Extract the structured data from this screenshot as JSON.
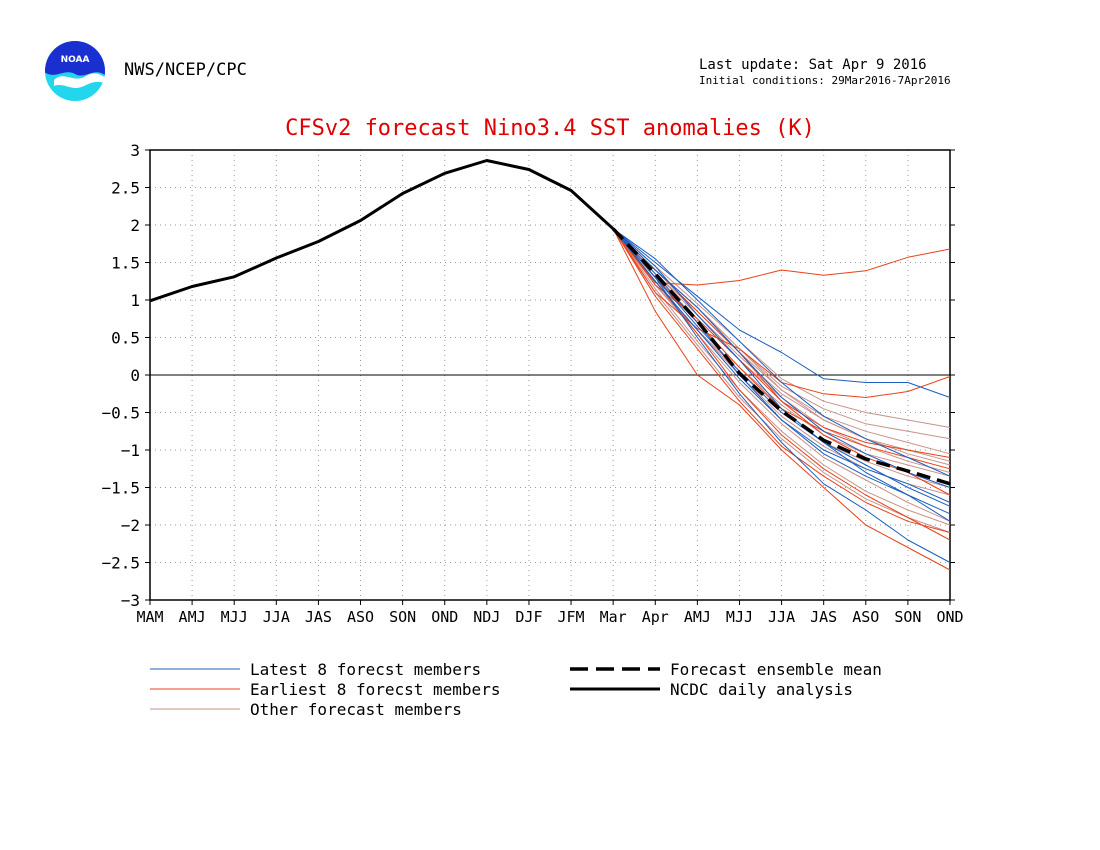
{
  "header": {
    "agency": "NWS/NCEP/CPC",
    "last_update": "Last update: Sat Apr  9 2016",
    "initial_conditions": "Initial conditions: 29Mar2016-7Apr2016"
  },
  "colors": {
    "latest": "#1a5fc0",
    "earliest": "#e8421a",
    "other": "#c9928b",
    "mean": "#000000",
    "analysis": "#000000",
    "title": "#e00000",
    "logo_top": "#1a2fd0",
    "logo_bottom": "#22d6ee"
  },
  "chart_data": {
    "type": "line",
    "title": "CFSv2 forecast Nino3.4 SST anomalies (K)",
    "xlabel": "",
    "ylabel": "",
    "x_tick_labels": [
      "MAM",
      "AMJ",
      "MJJ",
      "JJA",
      "JAS",
      "ASO",
      "SON",
      "OND",
      "NDJ",
      "DJF",
      "JFM",
      "Mar",
      "Apr",
      "AMJ",
      "MJJ",
      "JJA",
      "JAS",
      "ASO",
      "SON",
      "OND"
    ],
    "y_ticks": [
      3,
      2.5,
      2,
      1.5,
      1,
      0.5,
      0,
      -0.5,
      -1,
      -1.5,
      -2,
      -2.5,
      -3
    ],
    "y_tick_labels": [
      "3",
      "2.5",
      "2",
      "1.5",
      "1",
      "0.5",
      "0",
      "−0.5",
      "−1",
      "−1.5",
      "−2",
      "−2.5",
      "−3"
    ],
    "ylim": [
      -3,
      3
    ],
    "grid": "dotted",
    "zero_line": true,
    "series": [
      {
        "name": "NCDC daily analysis",
        "role": "analysis",
        "x": [
          0,
          1,
          2,
          3,
          4,
          5,
          6,
          7,
          8,
          9,
          10,
          11
        ],
        "values": [
          0.99,
          1.18,
          1.31,
          1.56,
          1.78,
          2.06,
          2.42,
          2.69,
          2.86,
          2.74,
          2.46,
          1.95
        ]
      },
      {
        "name": "Forecast ensemble mean",
        "role": "mean",
        "x": [
          11,
          12,
          13,
          14,
          15,
          16,
          17,
          18,
          19
        ],
        "values": [
          1.95,
          1.35,
          0.72,
          0.02,
          -0.48,
          -0.87,
          -1.12,
          -1.28,
          -1.45
        ]
      },
      {
        "name": "Earliest 8 forecst members",
        "role": "earliest",
        "x": [
          11,
          12,
          13,
          14,
          15,
          16,
          17,
          18,
          19
        ],
        "values": [
          1.95,
          1.23,
          1.2,
          1.26,
          1.4,
          1.33,
          1.39,
          1.57,
          1.68
        ]
      },
      {
        "name": "Earliest 8 forecst members",
        "role": "earliest",
        "x": [
          11,
          12,
          13,
          14,
          15,
          16,
          17,
          18,
          19
        ],
        "values": [
          1.95,
          1.1,
          0.62,
          0.35,
          -0.1,
          -0.25,
          -0.3,
          -0.22,
          -0.02
        ]
      },
      {
        "name": "Earliest 8 forecst members",
        "role": "earliest",
        "x": [
          11,
          12,
          13,
          14,
          15,
          16,
          17,
          18,
          19
        ],
        "values": [
          1.95,
          0.85,
          0.0,
          -0.4,
          -1.0,
          -1.5,
          -2.0,
          -2.3,
          -2.6
        ]
      },
      {
        "name": "Earliest 8 forecst members",
        "role": "earliest",
        "x": [
          11,
          12,
          13,
          14,
          15,
          16,
          17,
          18,
          19
        ],
        "values": [
          1.95,
          1.4,
          0.85,
          0.3,
          -0.35,
          -0.8,
          -1.1,
          -1.3,
          -1.6
        ]
      },
      {
        "name": "Earliest 8 forecst members",
        "role": "earliest",
        "x": [
          11,
          12,
          13,
          14,
          15,
          16,
          17,
          18,
          19
        ],
        "values": [
          1.95,
          1.25,
          0.55,
          -0.2,
          -0.8,
          -1.25,
          -1.6,
          -1.9,
          -2.2
        ]
      },
      {
        "name": "Earliest 8 forecst members",
        "role": "earliest",
        "x": [
          11,
          12,
          13,
          14,
          15,
          16,
          17,
          18,
          19
        ],
        "values": [
          1.95,
          1.3,
          0.7,
          0.1,
          -0.45,
          -0.75,
          -0.95,
          -1.1,
          -1.25
        ]
      },
      {
        "name": "Earliest 8 forecst members",
        "role": "earliest",
        "x": [
          11,
          12,
          13,
          14,
          15,
          16,
          17,
          18,
          19
        ],
        "values": [
          1.95,
          1.05,
          0.35,
          -0.35,
          -0.95,
          -1.35,
          -1.7,
          -1.95,
          -2.1
        ]
      },
      {
        "name": "Earliest 8 forecst members",
        "role": "earliest",
        "x": [
          11,
          12,
          13,
          14,
          15,
          16,
          17,
          18,
          19
        ],
        "values": [
          1.95,
          1.2,
          0.75,
          0.2,
          -0.35,
          -0.7,
          -0.9,
          -1.0,
          -1.1
        ]
      },
      {
        "name": "Latest 8 forecst members",
        "role": "latest",
        "x": [
          11,
          12,
          13,
          14,
          15,
          16,
          17,
          18,
          19
        ],
        "values": [
          1.95,
          1.5,
          1.05,
          0.6,
          0.3,
          -0.05,
          -0.1,
          -0.1,
          -0.3
        ]
      },
      {
        "name": "Latest 8 forecst members",
        "role": "latest",
        "x": [
          11,
          12,
          13,
          14,
          15,
          16,
          17,
          18,
          19
        ],
        "values": [
          1.95,
          1.45,
          0.8,
          0.2,
          -0.45,
          -0.9,
          -1.3,
          -1.6,
          -1.95
        ]
      },
      {
        "name": "Latest 8 forecst members",
        "role": "latest",
        "x": [
          11,
          12,
          13,
          14,
          15,
          16,
          17,
          18,
          19
        ],
        "values": [
          1.95,
          1.3,
          0.5,
          -0.25,
          -0.9,
          -1.45,
          -1.8,
          -2.2,
          -2.5
        ]
      },
      {
        "name": "Latest 8 forecst members",
        "role": "latest",
        "x": [
          11,
          12,
          13,
          14,
          15,
          16,
          17,
          18,
          19
        ],
        "values": [
          1.95,
          1.35,
          0.7,
          0.0,
          -0.6,
          -1.0,
          -1.25,
          -1.45,
          -1.7
        ]
      },
      {
        "name": "Latest 8 forecst members",
        "role": "latest",
        "x": [
          11,
          12,
          13,
          14,
          15,
          16,
          17,
          18,
          19
        ],
        "values": [
          1.95,
          1.4,
          0.9,
          0.3,
          -0.3,
          -0.75,
          -1.05,
          -1.3,
          -1.5
        ]
      },
      {
        "name": "Latest 8 forecst members",
        "role": "latest",
        "x": [
          11,
          12,
          13,
          14,
          15,
          16,
          17,
          18,
          19
        ],
        "values": [
          1.95,
          1.25,
          0.6,
          -0.05,
          -0.6,
          -1.05,
          -1.35,
          -1.6,
          -1.85
        ]
      },
      {
        "name": "Latest 8 forecst members",
        "role": "latest",
        "x": [
          11,
          12,
          13,
          14,
          15,
          16,
          17,
          18,
          19
        ],
        "values": [
          1.95,
          1.55,
          1.0,
          0.45,
          -0.1,
          -0.55,
          -0.85,
          -1.1,
          -1.35
        ]
      },
      {
        "name": "Latest 8 forecst members",
        "role": "latest",
        "x": [
          11,
          12,
          13,
          14,
          15,
          16,
          17,
          18,
          19
        ],
        "values": [
          1.95,
          1.3,
          0.65,
          0.05,
          -0.5,
          -0.9,
          -1.2,
          -1.5,
          -1.75
        ]
      },
      {
        "name": "Other forecast members",
        "role": "other",
        "x": [
          11,
          12,
          13,
          14,
          15,
          16,
          17,
          18,
          19
        ],
        "values": [
          1.95,
          1.4,
          0.9,
          0.35,
          -0.15,
          -0.45,
          -0.65,
          -0.75,
          -0.85
        ]
      },
      {
        "name": "Other forecast members",
        "role": "other",
        "x": [
          11,
          12,
          13,
          14,
          15,
          16,
          17,
          18,
          19
        ],
        "values": [
          1.95,
          1.3,
          0.75,
          0.2,
          -0.3,
          -0.7,
          -0.95,
          -1.15,
          -1.3
        ]
      },
      {
        "name": "Other forecast members",
        "role": "other",
        "x": [
          11,
          12,
          13,
          14,
          15,
          16,
          17,
          18,
          19
        ],
        "values": [
          1.95,
          1.2,
          0.55,
          -0.1,
          -0.65,
          -1.1,
          -1.4,
          -1.7,
          -1.95
        ]
      },
      {
        "name": "Other forecast members",
        "role": "other",
        "x": [
          11,
          12,
          13,
          14,
          15,
          16,
          17,
          18,
          19
        ],
        "values": [
          1.95,
          1.35,
          0.8,
          0.25,
          -0.25,
          -0.6,
          -0.85,
          -1.0,
          -1.15
        ]
      },
      {
        "name": "Other forecast members",
        "role": "other",
        "x": [
          11,
          12,
          13,
          14,
          15,
          16,
          17,
          18,
          19
        ],
        "values": [
          1.95,
          1.25,
          0.6,
          0.0,
          -0.55,
          -0.95,
          -1.25,
          -1.45,
          -1.6
        ]
      },
      {
        "name": "Other forecast members",
        "role": "other",
        "x": [
          11,
          12,
          13,
          14,
          15,
          16,
          17,
          18,
          19
        ],
        "values": [
          1.95,
          1.15,
          0.45,
          -0.2,
          -0.75,
          -1.2,
          -1.55,
          -1.8,
          -2.0
        ]
      },
      {
        "name": "Other forecast members",
        "role": "other",
        "x": [
          11,
          12,
          13,
          14,
          15,
          16,
          17,
          18,
          19
        ],
        "values": [
          1.95,
          1.45,
          0.95,
          0.45,
          -0.05,
          -0.35,
          -0.5,
          -0.6,
          -0.7
        ]
      },
      {
        "name": "Other forecast members",
        "role": "other",
        "x": [
          11,
          12,
          13,
          14,
          15,
          16,
          17,
          18,
          19
        ],
        "values": [
          1.95,
          1.3,
          0.7,
          0.1,
          -0.4,
          -0.8,
          -1.05,
          -1.2,
          -1.35
        ]
      },
      {
        "name": "Other forecast members",
        "role": "other",
        "x": [
          11,
          12,
          13,
          14,
          15,
          16,
          17,
          18,
          19
        ],
        "values": [
          1.95,
          1.2,
          0.6,
          0.05,
          -0.45,
          -0.9,
          -1.15,
          -1.35,
          -1.5
        ]
      },
      {
        "name": "Other forecast members",
        "role": "other",
        "x": [
          11,
          12,
          13,
          14,
          15,
          16,
          17,
          18,
          19
        ],
        "values": [
          1.95,
          1.35,
          0.85,
          0.3,
          -0.2,
          -0.6,
          -0.85,
          -1.05,
          -1.2
        ]
      },
      {
        "name": "Other forecast members",
        "role": "other",
        "x": [
          11,
          12,
          13,
          14,
          15,
          16,
          17,
          18,
          19
        ],
        "values": [
          1.95,
          1.1,
          0.4,
          -0.3,
          -0.85,
          -1.3,
          -1.65,
          -1.9,
          -2.1
        ]
      },
      {
        "name": "Other forecast members",
        "role": "other",
        "x": [
          11,
          12,
          13,
          14,
          15,
          16,
          17,
          18,
          19
        ],
        "values": [
          1.95,
          1.4,
          0.9,
          0.35,
          -0.2,
          -0.55,
          -0.75,
          -0.9,
          -1.05
        ]
      }
    ],
    "legend": {
      "placement": "bottom",
      "entries": [
        {
          "label": "Latest 8 forecst members",
          "role": "latest"
        },
        {
          "label": "Earliest 8 forecst members",
          "role": "earliest"
        },
        {
          "label": "Other forecast members",
          "role": "other"
        },
        {
          "label": "Forecast ensemble mean",
          "role": "mean"
        },
        {
          "label": "NCDC daily analysis",
          "role": "analysis"
        }
      ]
    }
  }
}
